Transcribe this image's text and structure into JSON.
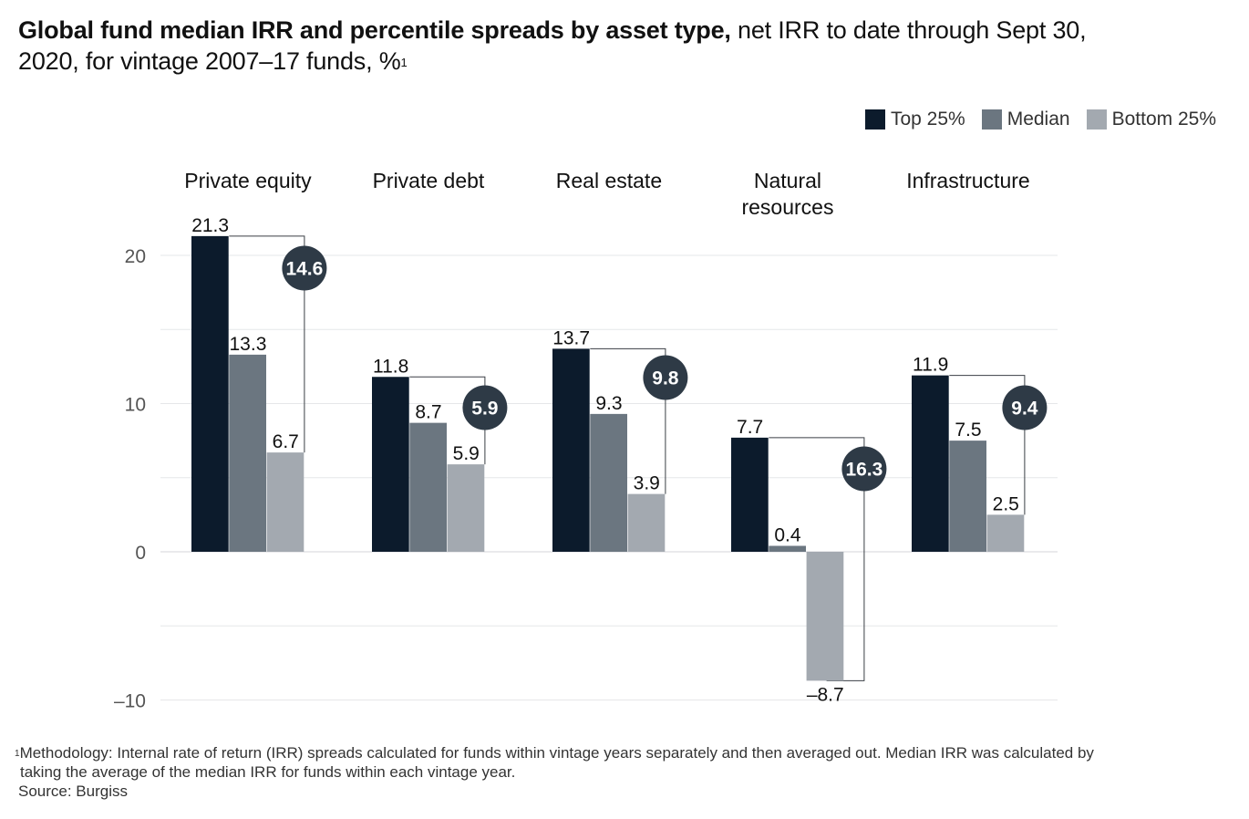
{
  "title": {
    "bold": "Global fund median IRR and percentile spreads by asset type,",
    "rest": " net IRR to date through Sept 30, 2020, for vintage 2007–17 funds, %",
    "sup": "1"
  },
  "legend": [
    {
      "label": "Top 25%",
      "color": "#0c1b2c"
    },
    {
      "label": "Median",
      "color": "#6b7680"
    },
    {
      "label": "Bottom 25%",
      "color": "#a3a9b0"
    }
  ],
  "chart_data": {
    "type": "bar",
    "categories": [
      "Private equity",
      "Private debt",
      "Real estate",
      "Natural resources",
      "Infrastructure"
    ],
    "category_lines": [
      [
        "Private equity"
      ],
      [
        "Private debt"
      ],
      [
        "Real estate"
      ],
      [
        "Natural",
        "resources"
      ],
      [
        "Infrastructure"
      ]
    ],
    "series": [
      {
        "name": "Top 25%",
        "color": "#0c1b2c",
        "values": [
          21.3,
          11.8,
          13.7,
          7.7,
          11.9
        ],
        "labels": [
          "21.3",
          "11.8",
          "13.7",
          "7.7",
          "11.9"
        ]
      },
      {
        "name": "Median",
        "color": "#6b7680",
        "values": [
          13.3,
          8.7,
          9.3,
          0.4,
          7.5
        ],
        "labels": [
          "13.3",
          "8.7",
          "9.3",
          "0.4",
          "7.5"
        ]
      },
      {
        "name": "Bottom 25%",
        "color": "#a3a9b0",
        "values": [
          6.7,
          5.9,
          3.9,
          -8.7,
          2.5
        ],
        "labels": [
          "6.7",
          "5.9",
          "3.9",
          "–8.7",
          "2.5"
        ]
      }
    ],
    "spreads": [
      14.6,
      5.9,
      9.8,
      16.3,
      9.4
    ],
    "spread_labels": [
      "14.6",
      "5.9",
      "9.8",
      "16.3",
      "9.4"
    ],
    "spread_color": "#2e3a46",
    "yticks": [
      20,
      10,
      0,
      -10
    ],
    "ytick_labels": [
      "20",
      "10",
      "0",
      "–10"
    ],
    "ylim": [
      -10,
      21.3
    ],
    "grid": true,
    "legend_position": "top-right"
  },
  "footnote": {
    "sup": "1",
    "line1": "Methodology: Internal rate of return (IRR) spreads calculated for funds within vintage years separately and then averaged out. Median IRR was calculated by",
    "line2": "taking the  average of the median IRR for funds within each vintage year.",
    "source": "Source: Burgiss"
  }
}
